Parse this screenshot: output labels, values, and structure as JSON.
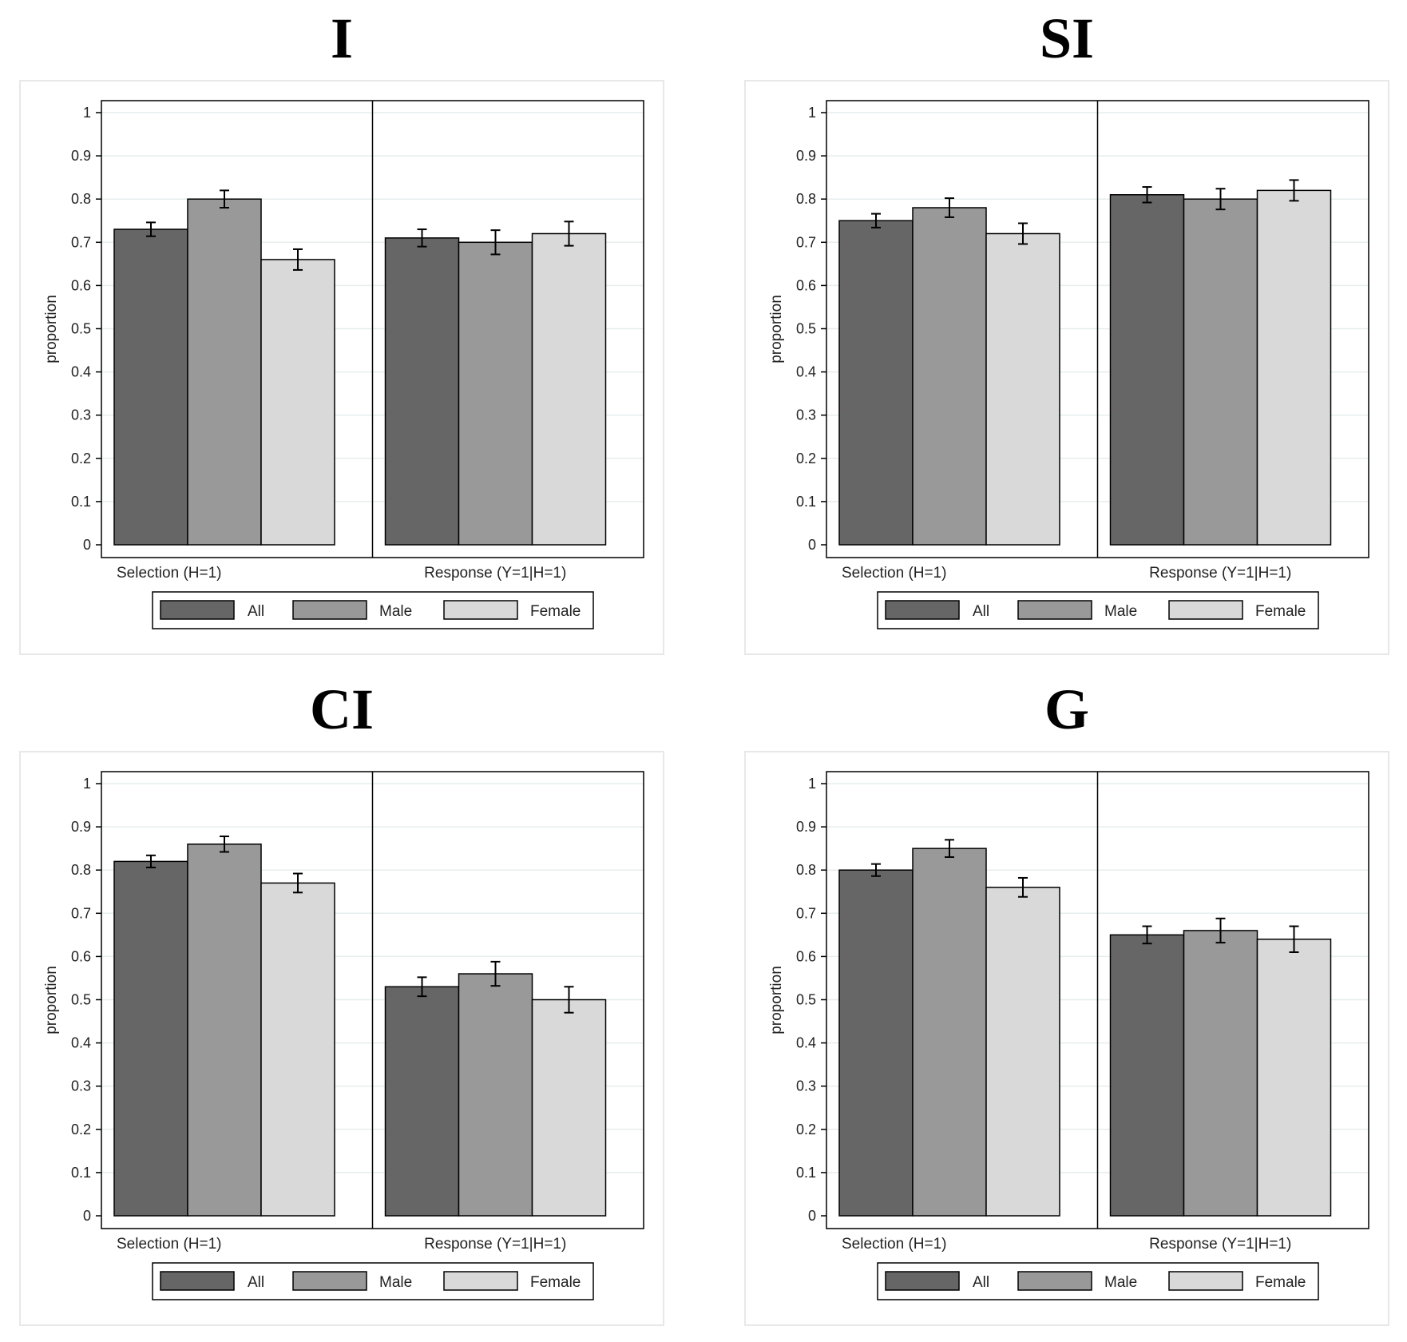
{
  "colors": {
    "All": "#666666",
    "Male": "#999999",
    "Female": "#d9d9d9",
    "plot_frame": "#000000",
    "grid": "#e6eeee",
    "panel_border": "#e8e8e8"
  },
  "chart_data": [
    {
      "type": "bar",
      "title": "I",
      "ylabel": "proportion",
      "ylim": [
        0,
        1
      ],
      "yticks": [
        "0",
        "0.1",
        "0.2",
        "0.3",
        "0.4",
        "0.5",
        "0.6",
        "0.7",
        "0.8",
        "0.9",
        "1"
      ],
      "categories": [
        "Selection (H=1)",
        "Response (Y=1|H=1)"
      ],
      "legend": [
        "All",
        "Male",
        "Female"
      ],
      "series": [
        {
          "name": "All",
          "values": [
            0.73,
            0.71
          ],
          "errors": [
            0.016,
            0.02
          ]
        },
        {
          "name": "Male",
          "values": [
            0.8,
            0.7
          ],
          "errors": [
            0.02,
            0.028
          ]
        },
        {
          "name": "Female",
          "values": [
            0.66,
            0.72
          ],
          "errors": [
            0.024,
            0.028
          ]
        }
      ]
    },
    {
      "type": "bar",
      "title": "SI",
      "ylabel": "proportion",
      "ylim": [
        0,
        1
      ],
      "yticks": [
        "0",
        "0.1",
        "0.2",
        "0.3",
        "0.4",
        "0.5",
        "0.6",
        "0.7",
        "0.8",
        "0.9",
        "1"
      ],
      "categories": [
        "Selection (H=1)",
        "Response (Y=1|H=1)"
      ],
      "legend": [
        "All",
        "Male",
        "Female"
      ],
      "series": [
        {
          "name": "All",
          "values": [
            0.75,
            0.81
          ],
          "errors": [
            0.016,
            0.018
          ]
        },
        {
          "name": "Male",
          "values": [
            0.78,
            0.8
          ],
          "errors": [
            0.022,
            0.024
          ]
        },
        {
          "name": "Female",
          "values": [
            0.72,
            0.82
          ],
          "errors": [
            0.024,
            0.024
          ]
        }
      ]
    },
    {
      "type": "bar",
      "title": "CI",
      "ylabel": "proportion",
      "ylim": [
        0,
        1
      ],
      "yticks": [
        "0",
        "0.1",
        "0.2",
        "0.3",
        "0.4",
        "0.5",
        "0.6",
        "0.7",
        "0.8",
        "0.9",
        "1"
      ],
      "categories": [
        "Selection (H=1)",
        "Response (Y=1|H=1)"
      ],
      "legend": [
        "All",
        "Male",
        "Female"
      ],
      "series": [
        {
          "name": "All",
          "values": [
            0.82,
            0.53
          ],
          "errors": [
            0.014,
            0.022
          ]
        },
        {
          "name": "Male",
          "values": [
            0.86,
            0.56
          ],
          "errors": [
            0.018,
            0.028
          ]
        },
        {
          "name": "Female",
          "values": [
            0.77,
            0.5
          ],
          "errors": [
            0.022,
            0.03
          ]
        }
      ]
    },
    {
      "type": "bar",
      "title": "G",
      "ylabel": "proportion",
      "ylim": [
        0,
        1
      ],
      "yticks": [
        "0",
        "0.1",
        "0.2",
        "0.3",
        "0.4",
        "0.5",
        "0.6",
        "0.7",
        "0.8",
        "0.9",
        "1"
      ],
      "categories": [
        "Selection (H=1)",
        "Response (Y=1|H=1)"
      ],
      "legend": [
        "All",
        "Male",
        "Female"
      ],
      "series": [
        {
          "name": "All",
          "values": [
            0.8,
            0.65
          ],
          "errors": [
            0.014,
            0.02
          ]
        },
        {
          "name": "Male",
          "values": [
            0.85,
            0.66
          ],
          "errors": [
            0.02,
            0.028
          ]
        },
        {
          "name": "Female",
          "values": [
            0.76,
            0.64
          ],
          "errors": [
            0.022,
            0.03
          ]
        }
      ]
    }
  ]
}
